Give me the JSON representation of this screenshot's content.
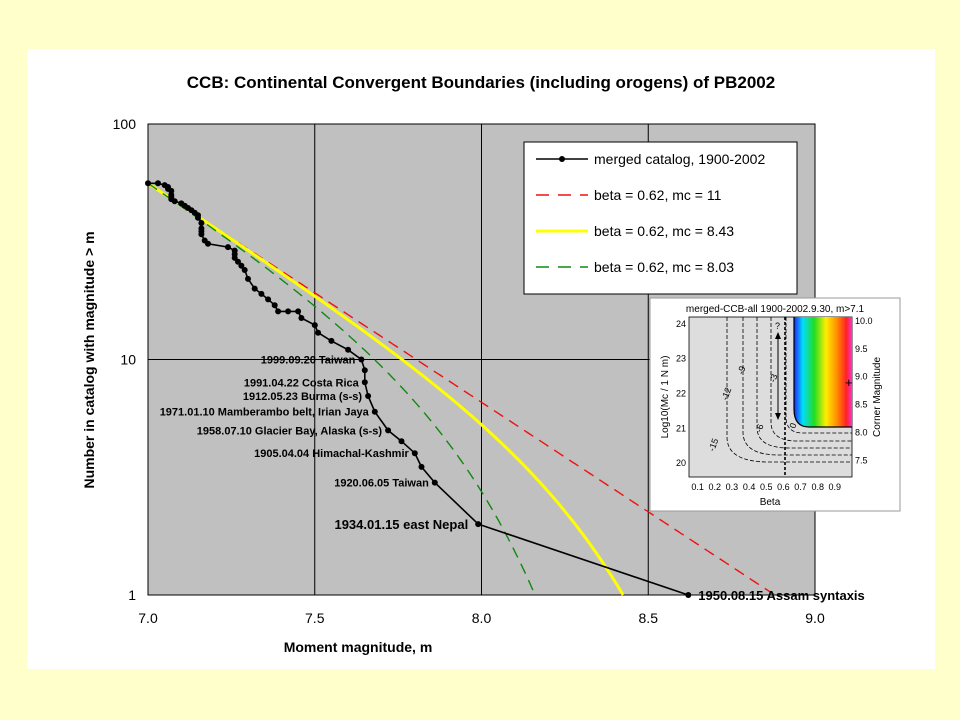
{
  "chart_data": {
    "type": "line",
    "title": "CCB: Continental Convergent Boundaries (including orogens) of PB2002",
    "xlabel": "Moment magnitude, m",
    "ylabel": "Number in catalog with magnitude > m",
    "xlim": [
      7.0,
      9.0
    ],
    "ylim": [
      1,
      100
    ],
    "yscale": "log",
    "grid": true,
    "xticks": [
      "7.0",
      "7.5",
      "8.0",
      "8.5",
      "9.0"
    ],
    "yticks": [
      "1",
      "10",
      "100"
    ],
    "legend_position": "top-right",
    "series": [
      {
        "name": "merged catalog, 1900-2002",
        "color": "#000000",
        "style": "solid-markers",
        "x": [
          7.0,
          7.03,
          7.05,
          7.06,
          7.06,
          7.07,
          7.07,
          7.07,
          7.07,
          7.08,
          7.1,
          7.11,
          7.12,
          7.13,
          7.14,
          7.15,
          7.15,
          7.16,
          7.16,
          7.16,
          7.16,
          7.17,
          7.18,
          7.24,
          7.26,
          7.26,
          7.26,
          7.27,
          7.28,
          7.29,
          7.3,
          7.32,
          7.34,
          7.36,
          7.38,
          7.39,
          7.42,
          7.45,
          7.46,
          7.5,
          7.51,
          7.55,
          7.6,
          7.64,
          7.65,
          7.65,
          7.66,
          7.68,
          7.72,
          7.76,
          7.8,
          7.82,
          7.86,
          7.99,
          8.62
        ],
        "y": [
          56,
          56,
          55,
          54,
          53,
          52,
          50,
          49,
          48,
          47,
          46,
          45,
          44,
          43,
          42,
          41,
          40,
          38,
          36,
          35,
          34,
          32,
          31,
          30,
          29,
          28,
          27,
          26,
          25,
          24,
          22,
          20,
          19,
          18,
          17,
          16,
          16,
          16,
          15,
          14,
          13,
          12,
          11,
          10,
          9,
          8,
          7,
          6,
          5,
          4.5,
          4,
          3.5,
          3,
          2,
          1
        ]
      },
      {
        "name": "beta = 0.62, mc = 11",
        "color": "#ee1111",
        "style": "dashed",
        "beta": 0.62,
        "mc": 11
      },
      {
        "name": "beta = 0.62, mc = 8.43",
        "color": "#ffff00",
        "style": "solid",
        "beta": 0.62,
        "mc": 8.43
      },
      {
        "name": "beta = 0.62, mc = 8.03",
        "color": "#118811",
        "style": "dashed",
        "beta": 0.62,
        "mc": 8.03
      }
    ],
    "annotations": [
      {
        "text": "1999.09.20 Taiwan",
        "x": 7.64,
        "y": 10,
        "size": "small"
      },
      {
        "text": "1991.04.22 Costa Rica",
        "x": 7.65,
        "y": 8,
        "size": "small"
      },
      {
        "text": "1912.05.23 Burma (s-s)",
        "x": 7.66,
        "y": 7,
        "size": "small"
      },
      {
        "text": "1971.01.10 Mamberambo belt, Irian Jaya",
        "x": 7.68,
        "y": 6,
        "size": "small"
      },
      {
        "text": "1958.07.10 Glacier Bay, Alaska (s-s)",
        "x": 7.72,
        "y": 5,
        "size": "small"
      },
      {
        "text": "1905.04.04 Himachal-Kashmir",
        "x": 7.8,
        "y": 4,
        "size": "small"
      },
      {
        "text": "1920.06.05 Taiwan",
        "x": 7.86,
        "y": 3,
        "size": "small"
      },
      {
        "text": "1934.01.15 east Nepal",
        "x": 7.99,
        "y": 2,
        "size": "large"
      },
      {
        "text": "1950.08.15 Assam syntaxis",
        "x": 8.62,
        "y": 1,
        "size": "large"
      }
    ]
  },
  "inset": {
    "title": "merged-CCB-all 1900-2002.9.30, m>7.1",
    "xlabel": "Beta",
    "ylabel_left": "Log10(Mc / 1 N m)",
    "ylabel_right": "Corner Magnitude",
    "xticks": [
      "0.1",
      "0.2",
      "0.3",
      "0.4",
      "0.5",
      "0.6",
      "0.7",
      "0.8",
      "0.9"
    ],
    "yticks_left": [
      "20",
      "21",
      "22",
      "23",
      "24"
    ],
    "yticks_right": [
      "7.5",
      "8.0",
      "8.5",
      "9.0",
      "9.5",
      "10.0"
    ],
    "contour_labels": [
      "-15",
      "-12",
      "-9",
      "-6",
      "-3",
      "0"
    ],
    "question_mark": "?",
    "cross_mark": "+"
  }
}
